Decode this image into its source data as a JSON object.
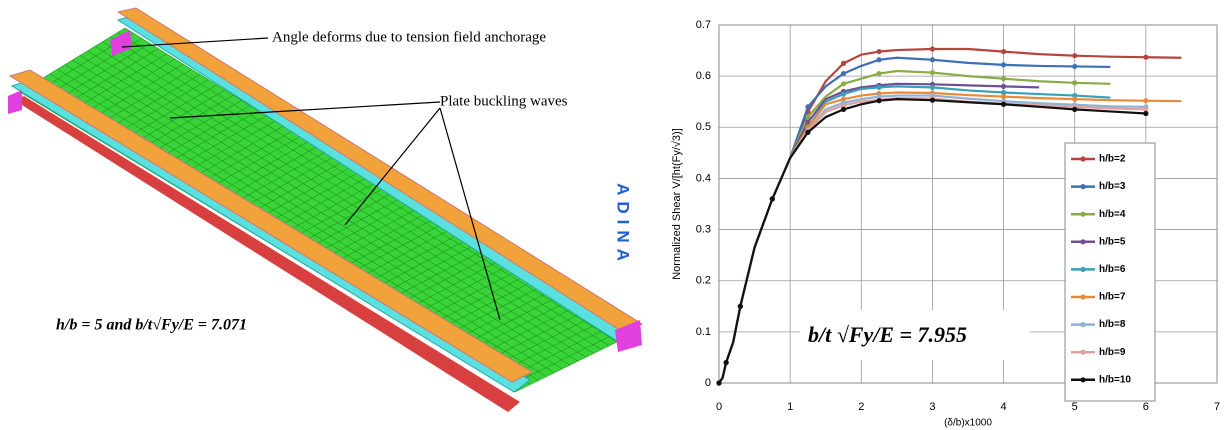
{
  "figure": {
    "annotations": [
      "Angle deforms due to tension field anchorage",
      "Plate buckling waves"
    ],
    "logo": "ADINA",
    "formula": "h/b = 5 and b/t√Fy/E = 7.071"
  },
  "chart_data": {
    "type": "line",
    "y_label": "Normalized Shear V/[ht(Fy/√3)]",
    "x_label": "(δ/b)x1000",
    "annotation": "b/t √Fy/E = 7.955",
    "xlim": [
      0,
      7
    ],
    "xticks": [
      0,
      1,
      2,
      3,
      4,
      5,
      6,
      7
    ],
    "ylim": [
      0,
      0.7
    ],
    "yticks": [
      0,
      0.1,
      0.2,
      0.3,
      0.4,
      0.5,
      0.6,
      0.7
    ],
    "grid": true,
    "legend": "right",
    "x": [
      0,
      0.05,
      0.1,
      0.2,
      0.3,
      0.5,
      0.75,
      1,
      1.25,
      1.5,
      1.75,
      2,
      2.25,
      2.5,
      3,
      3.5,
      4,
      4.5,
      5,
      5.5,
      6,
      6.5
    ],
    "series": [
      {
        "name": "h/b=2",
        "color": "#b5443f",
        "values": [
          0,
          0.01,
          0.04,
          0.08,
          0.15,
          0.265,
          0.36,
          0.44,
          0.53,
          0.59,
          0.625,
          0.642,
          0.648,
          0.651,
          0.653,
          0.653,
          0.648,
          0.643,
          0.64,
          0.638,
          0.637,
          0.636
        ]
      },
      {
        "name": "h/b=3",
        "color": "#3f6fb5",
        "values": [
          0,
          0.01,
          0.04,
          0.08,
          0.15,
          0.265,
          0.36,
          0.44,
          0.54,
          0.58,
          0.605,
          0.62,
          0.632,
          0.636,
          0.632,
          0.626,
          0.622,
          0.62,
          0.619,
          0.618,
          null,
          null
        ]
      },
      {
        "name": "h/b=4",
        "color": "#8aab45",
        "values": [
          0,
          0.01,
          0.04,
          0.08,
          0.15,
          0.265,
          0.36,
          0.44,
          0.52,
          0.56,
          0.585,
          0.595,
          0.605,
          0.61,
          0.607,
          0.6,
          0.595,
          0.59,
          0.587,
          0.585,
          null,
          null
        ]
      },
      {
        "name": "h/b=5",
        "color": "#6f4f96",
        "values": [
          0,
          0.01,
          0.04,
          0.08,
          0.15,
          0.265,
          0.36,
          0.44,
          0.51,
          0.555,
          0.57,
          0.578,
          0.582,
          0.585,
          0.584,
          0.582,
          0.58,
          0.578,
          null,
          null,
          null,
          null
        ]
      },
      {
        "name": "h/b=6",
        "color": "#3aa0b8",
        "values": [
          0,
          0.01,
          0.04,
          0.08,
          0.15,
          0.265,
          0.36,
          0.44,
          0.5,
          0.55,
          0.565,
          0.575,
          0.578,
          0.58,
          0.578,
          0.572,
          0.568,
          0.565,
          0.562,
          0.558,
          null,
          null
        ]
      },
      {
        "name": "h/b=7",
        "color": "#e88a38",
        "values": [
          0,
          0.01,
          0.04,
          0.08,
          0.15,
          0.265,
          0.36,
          0.44,
          0.5,
          0.545,
          0.555,
          0.562,
          0.566,
          0.568,
          0.567,
          0.563,
          0.56,
          0.557,
          0.555,
          0.553,
          0.552,
          0.551
        ]
      },
      {
        "name": "h/b=8",
        "color": "#8fb0d8",
        "values": [
          0,
          0.01,
          0.04,
          0.08,
          0.15,
          0.265,
          0.36,
          0.44,
          0.495,
          0.535,
          0.548,
          0.555,
          0.56,
          0.562,
          0.562,
          0.556,
          0.551,
          0.547,
          0.544,
          0.541,
          0.54,
          null
        ]
      },
      {
        "name": "h/b=9",
        "color": "#e0a09c",
        "values": [
          0,
          0.01,
          0.04,
          0.08,
          0.15,
          0.265,
          0.36,
          0.44,
          0.493,
          0.53,
          0.543,
          0.55,
          0.554,
          0.557,
          0.556,
          0.55,
          0.546,
          0.543,
          0.54,
          0.537,
          0.535,
          null
        ]
      },
      {
        "name": "h/b=10",
        "color": "#111111",
        "values": [
          0,
          0.01,
          0.04,
          0.08,
          0.15,
          0.265,
          0.36,
          0.44,
          0.49,
          0.52,
          0.535,
          0.545,
          0.552,
          0.555,
          0.553,
          0.549,
          0.545,
          0.54,
          0.535,
          0.531,
          0.527,
          null
        ]
      }
    ]
  }
}
